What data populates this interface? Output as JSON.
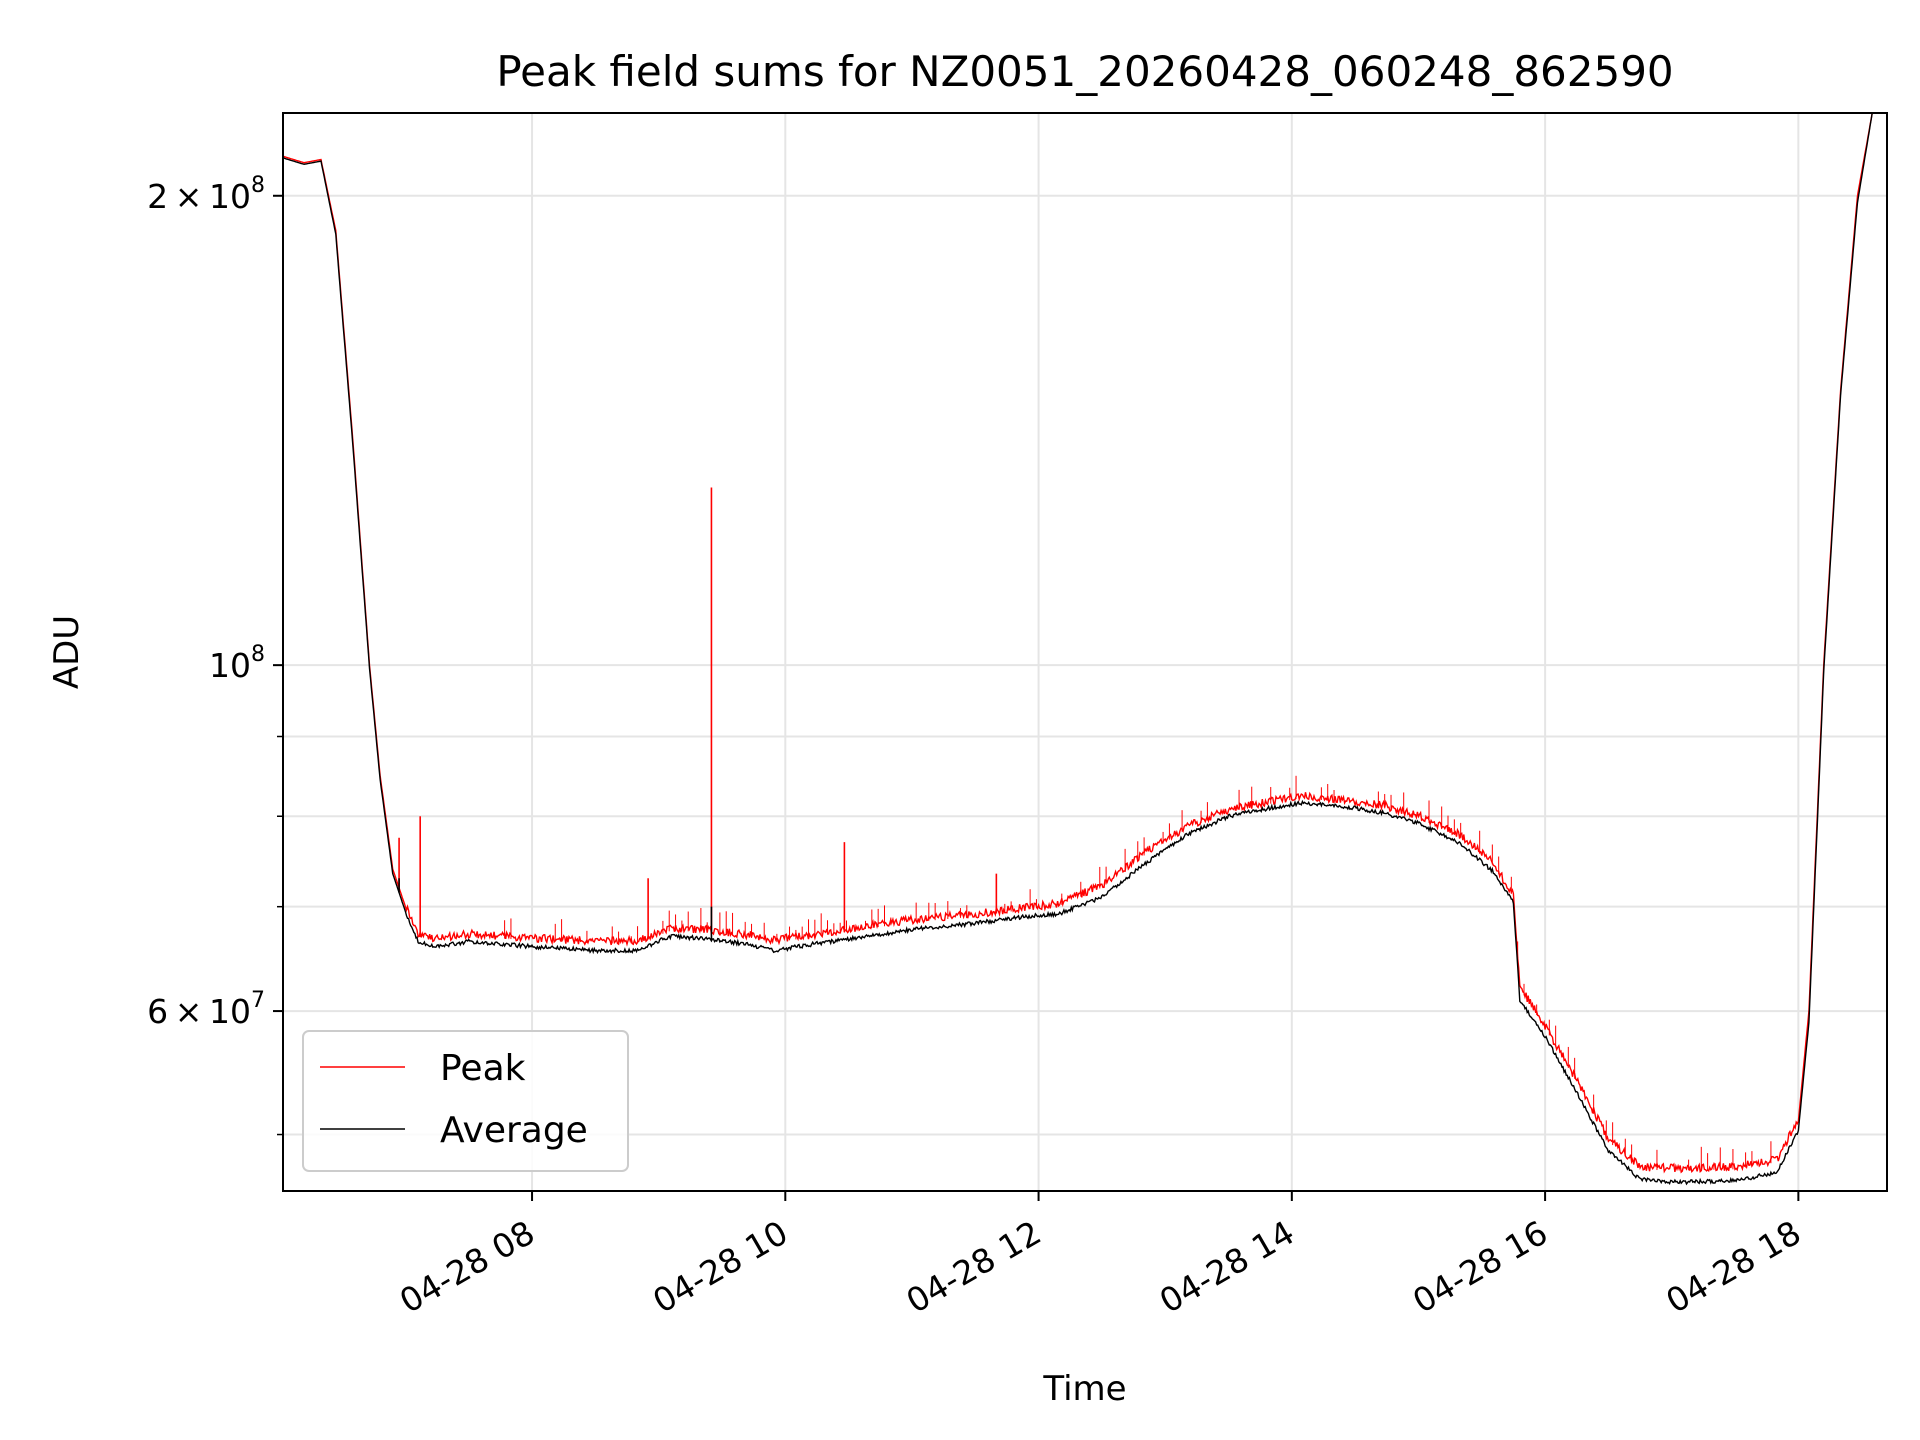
{
  "chart_data": {
    "type": "line",
    "title": "Peak field sums for NZ0051_20260428_060248_862590",
    "xlabel": "Time",
    "ylabel": "ADU",
    "y_scale": "log",
    "x_range": [
      "04-28 06:02",
      "04-28 18:42"
    ],
    "ylim": [
      46000000,
      226000000
    ],
    "grid": true,
    "legend_position": "lower-left",
    "x_ticks": [
      {
        "value": "04-28 08:00",
        "label": "04-28 08"
      },
      {
        "value": "04-28 10:00",
        "label": "04-28 10"
      },
      {
        "value": "04-28 12:00",
        "label": "04-28 12"
      },
      {
        "value": "04-28 14:00",
        "label": "04-28 14"
      },
      {
        "value": "04-28 16:00",
        "label": "04-28 16"
      },
      {
        "value": "04-28 18:00",
        "label": "04-28 18"
      }
    ],
    "y_ticks": [
      {
        "value": 60000000,
        "mantissa": "6",
        "base": "10",
        "exp": "7"
      },
      {
        "value": 100000000,
        "mantissa": "",
        "base": "10",
        "exp": "8"
      },
      {
        "value": 200000000,
        "mantissa": "2",
        "base": "10",
        "exp": "8"
      }
    ],
    "y_minor_ticks": [
      50000000,
      70000000,
      80000000,
      90000000
    ],
    "series": [
      {
        "name": "Peak",
        "color": "#ff0000",
        "points": [
          [
            "04-28 06:02",
            212000000
          ],
          [
            "04-28 06:12",
            210000000
          ],
          [
            "04-28 06:20",
            211000000
          ],
          [
            "04-28 06:27",
            190000000
          ],
          [
            "04-28 06:35",
            140000000
          ],
          [
            "04-28 06:43",
            100000000
          ],
          [
            "04-28 06:48",
            85000000
          ],
          [
            "04-28 06:54",
            74000000
          ],
          [
            "04-28 07:00",
            70000000
          ],
          [
            "04-28 07:06",
            67000000
          ],
          [
            "04-28 07:15",
            66500000
          ],
          [
            "04-28 07:30",
            67000000
          ],
          [
            "04-28 08:00",
            66600000
          ],
          [
            "04-28 08:30",
            66300000
          ],
          [
            "04-28 08:50",
            66300000
          ],
          [
            "04-28 09:05",
            67500000
          ],
          [
            "04-28 09:20",
            67500000
          ],
          [
            "04-28 09:40",
            67000000
          ],
          [
            "04-28 09:55",
            66400000
          ],
          [
            "04-28 10:15",
            67000000
          ],
          [
            "04-28 10:40",
            67800000
          ],
          [
            "04-28 11:00",
            68400000
          ],
          [
            "04-28 11:30",
            69000000
          ],
          [
            "04-28 11:50",
            69600000
          ],
          [
            "04-28 12:10",
            70100000
          ],
          [
            "04-28 12:30",
            72000000
          ],
          [
            "04-28 12:50",
            75500000
          ],
          [
            "04-28 13:10",
            78500000
          ],
          [
            "04-28 13:30",
            80500000
          ],
          [
            "04-28 13:50",
            81500000
          ],
          [
            "04-28 14:05",
            82200000
          ],
          [
            "04-28 14:30",
            81500000
          ],
          [
            "04-28 14:45",
            80900000
          ],
          [
            "04-28 15:00",
            79800000
          ],
          [
            "04-28 15:20",
            77500000
          ],
          [
            "04-28 15:35",
            74500000
          ],
          [
            "04-28 15:45",
            71000000
          ],
          [
            "04-28 15:48",
            62000000
          ],
          [
            "04-28 16:00",
            58500000
          ],
          [
            "04-28 16:15",
            54000000
          ],
          [
            "04-28 16:30",
            49500000
          ],
          [
            "04-28 16:45",
            47500000
          ],
          [
            "04-28 17:00",
            47400000
          ],
          [
            "04-28 17:30",
            47500000
          ],
          [
            "04-28 17:50",
            48000000
          ],
          [
            "04-28 18:00",
            51000000
          ],
          [
            "04-28 18:05",
            60000000
          ],
          [
            "04-28 18:12",
            100000000
          ],
          [
            "04-28 18:20",
            150000000
          ],
          [
            "04-28 18:28",
            200000000
          ],
          [
            "04-28 18:35",
            226000000
          ]
        ],
        "spikes": [
          [
            "04-28 06:57",
            77500000
          ],
          [
            "04-28 07:07",
            80000000
          ],
          [
            "04-28 08:55",
            73000000
          ],
          [
            "04-28 09:25",
            130000000
          ],
          [
            "04-28 10:28",
            77000000
          ],
          [
            "04-28 11:40",
            73500000
          ]
        ]
      },
      {
        "name": "Average",
        "color": "#000000",
        "points": [
          [
            "04-28 06:02",
            211500000
          ],
          [
            "04-28 06:12",
            209500000
          ],
          [
            "04-28 06:20",
            210500000
          ],
          [
            "04-28 06:27",
            189000000
          ],
          [
            "04-28 06:35",
            139000000
          ],
          [
            "04-28 06:43",
            99500000
          ],
          [
            "04-28 06:48",
            84500000
          ],
          [
            "04-28 06:54",
            73500000
          ],
          [
            "04-28 07:00",
            69500000
          ],
          [
            "04-28 07:06",
            66500000
          ],
          [
            "04-28 07:15",
            66000000
          ],
          [
            "04-28 07:30",
            66500000
          ],
          [
            "04-28 08:00",
            66000000
          ],
          [
            "04-28 08:30",
            65600000
          ],
          [
            "04-28 08:50",
            65600000
          ],
          [
            "04-28 09:05",
            67000000
          ],
          [
            "04-28 09:20",
            66800000
          ],
          [
            "04-28 09:40",
            66300000
          ],
          [
            "04-28 09:55",
            65600000
          ],
          [
            "04-28 10:15",
            66300000
          ],
          [
            "04-28 10:40",
            67000000
          ],
          [
            "04-28 11:00",
            67700000
          ],
          [
            "04-28 11:30",
            68300000
          ],
          [
            "04-28 11:50",
            68900000
          ],
          [
            "04-28 12:10",
            69300000
          ],
          [
            "04-28 12:30",
            71000000
          ],
          [
            "04-28 12:50",
            74500000
          ],
          [
            "04-28 13:10",
            77800000
          ],
          [
            "04-28 13:30",
            80000000
          ],
          [
            "04-28 13:50",
            81000000
          ],
          [
            "04-28 14:05",
            81600000
          ],
          [
            "04-28 14:30",
            81000000
          ],
          [
            "04-28 14:45",
            80300000
          ],
          [
            "04-28 15:00",
            79200000
          ],
          [
            "04-28 15:20",
            76800000
          ],
          [
            "04-28 15:35",
            73800000
          ],
          [
            "04-28 15:45",
            70500000
          ],
          [
            "04-28 15:48",
            61000000
          ],
          [
            "04-28 16:00",
            57800000
          ],
          [
            "04-28 16:15",
            53200000
          ],
          [
            "04-28 16:30",
            48800000
          ],
          [
            "04-28 16:45",
            46800000
          ],
          [
            "04-28 17:00",
            46600000
          ],
          [
            "04-28 17:30",
            46700000
          ],
          [
            "04-28 17:50",
            47300000
          ],
          [
            "04-28 18:00",
            50300000
          ],
          [
            "04-28 18:05",
            59000000
          ],
          [
            "04-28 18:12",
            99000000
          ],
          [
            "04-28 18:20",
            149000000
          ],
          [
            "04-28 18:28",
            198000000
          ],
          [
            "04-28 18:35",
            226000000
          ]
        ],
        "spikes": [
          [
            "04-28 06:57",
            73000000
          ],
          [
            "04-28 09:25",
            70000000
          ]
        ]
      }
    ]
  }
}
